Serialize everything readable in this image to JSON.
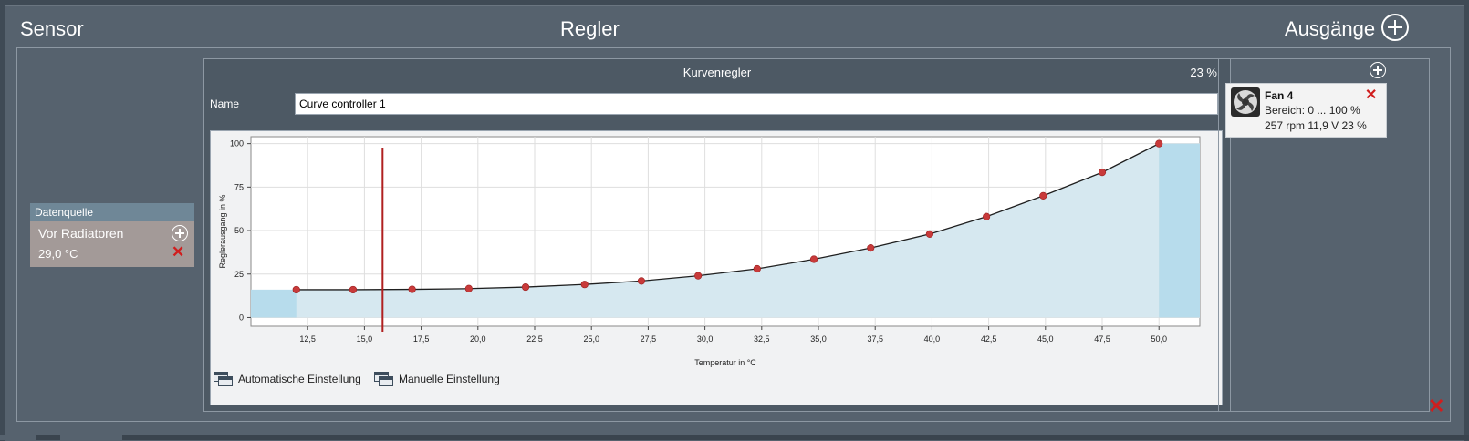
{
  "header": {
    "sensor_label": "Sensor",
    "controller_label": "Regler",
    "outputs_label": "Ausgänge"
  },
  "source": {
    "header": "Datenquelle",
    "name": "Vor Radiatoren",
    "value": "29,0 °C"
  },
  "controller": {
    "title": "Kurvenregler",
    "percent": "23 %",
    "name_label": "Name",
    "name_value": "Curve controller 1",
    "auto_button": "Automatische Einstellung",
    "manual_button": "Manuelle Einstellung"
  },
  "output": {
    "name": "Fan 4",
    "range": "Bereich:  0 ... 100  %",
    "status": "257 rpm  11,9 V  23 %"
  },
  "colors": {
    "accent_red": "#d01e1e",
    "curve_point": "#c83a3a",
    "fill": "#cfe4ef"
  },
  "chart_data": {
    "type": "line",
    "xlabel": "Temperatur in °C",
    "ylabel": "Reglerausgang in %",
    "xlim": [
      10,
      51.8
    ],
    "ylim": [
      -5,
      104
    ],
    "x_ticks": [
      12.5,
      15.0,
      17.5,
      20.0,
      22.5,
      25.0,
      27.5,
      30.0,
      32.5,
      35.0,
      37.5,
      40.0,
      42.5,
      45.0,
      47.5,
      50.0
    ],
    "x_tick_labels": [
      "12,5",
      "15,0",
      "17,5",
      "20,0",
      "22,5",
      "25,0",
      "27,5",
      "30,0",
      "32,5",
      "35,0",
      "37,5",
      "40,0",
      "42,5",
      "45,0",
      "47,5",
      "50,0"
    ],
    "y_ticks": [
      0,
      25,
      50,
      75,
      100
    ],
    "y_tick_labels": [
      "0",
      "25",
      "50",
      "75",
      "100"
    ],
    "grid": true,
    "marker_x": 15.8,
    "points": [
      {
        "x": 12.0,
        "y": 16.0
      },
      {
        "x": 14.5,
        "y": 16.0
      },
      {
        "x": 17.1,
        "y": 16.2
      },
      {
        "x": 19.6,
        "y": 16.6
      },
      {
        "x": 22.1,
        "y": 17.5
      },
      {
        "x": 24.7,
        "y": 19.0
      },
      {
        "x": 27.2,
        "y": 21.0
      },
      {
        "x": 29.7,
        "y": 24.0
      },
      {
        "x": 32.3,
        "y": 28.0
      },
      {
        "x": 34.8,
        "y": 33.5
      },
      {
        "x": 37.3,
        "y": 40.0
      },
      {
        "x": 39.9,
        "y": 48.0
      },
      {
        "x": 42.4,
        "y": 58.0
      },
      {
        "x": 44.9,
        "y": 70.0
      },
      {
        "x": 47.5,
        "y": 83.5
      },
      {
        "x": 50.0,
        "y": 100.0
      }
    ]
  }
}
